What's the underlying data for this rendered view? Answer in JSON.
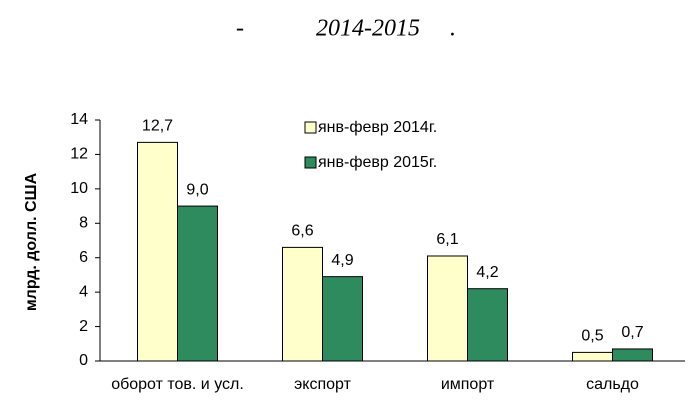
{
  "chart_data": {
    "type": "bar",
    "title": "-            2014-2015     .",
    "y_label": "млрд. долл. США",
    "categories": [
      "оборот тов. и усл.",
      "экспорт",
      "импорт",
      "сальдо"
    ],
    "series": [
      {
        "name": "янв-февр 2014г.",
        "color": "#ffffcc",
        "values": [
          12.7,
          6.6,
          6.1,
          0.5
        ],
        "value_labels": [
          "12,7",
          "6,6",
          "6,1",
          "0,5"
        ]
      },
      {
        "name": "янв-февр 2015г.",
        "color": "#2e8b5e",
        "values": [
          9.0,
          4.9,
          4.2,
          0.7
        ],
        "value_labels": [
          "9,0",
          "4,9",
          "4,2",
          "0,7"
        ]
      }
    ],
    "ylim": [
      0,
      14
    ],
    "yticks": [
      0,
      2,
      4,
      6,
      8,
      10,
      12,
      14
    ]
  }
}
